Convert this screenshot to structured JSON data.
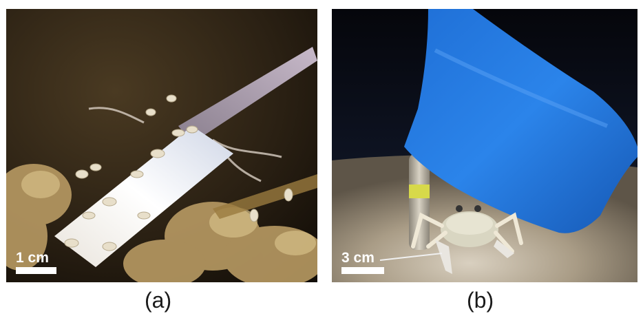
{
  "panels": [
    {
      "id": "a",
      "scale_label": "1 cm",
      "caption": "(a)"
    },
    {
      "id": "b",
      "scale_label": "3 cm",
      "caption": "(b)"
    }
  ]
}
